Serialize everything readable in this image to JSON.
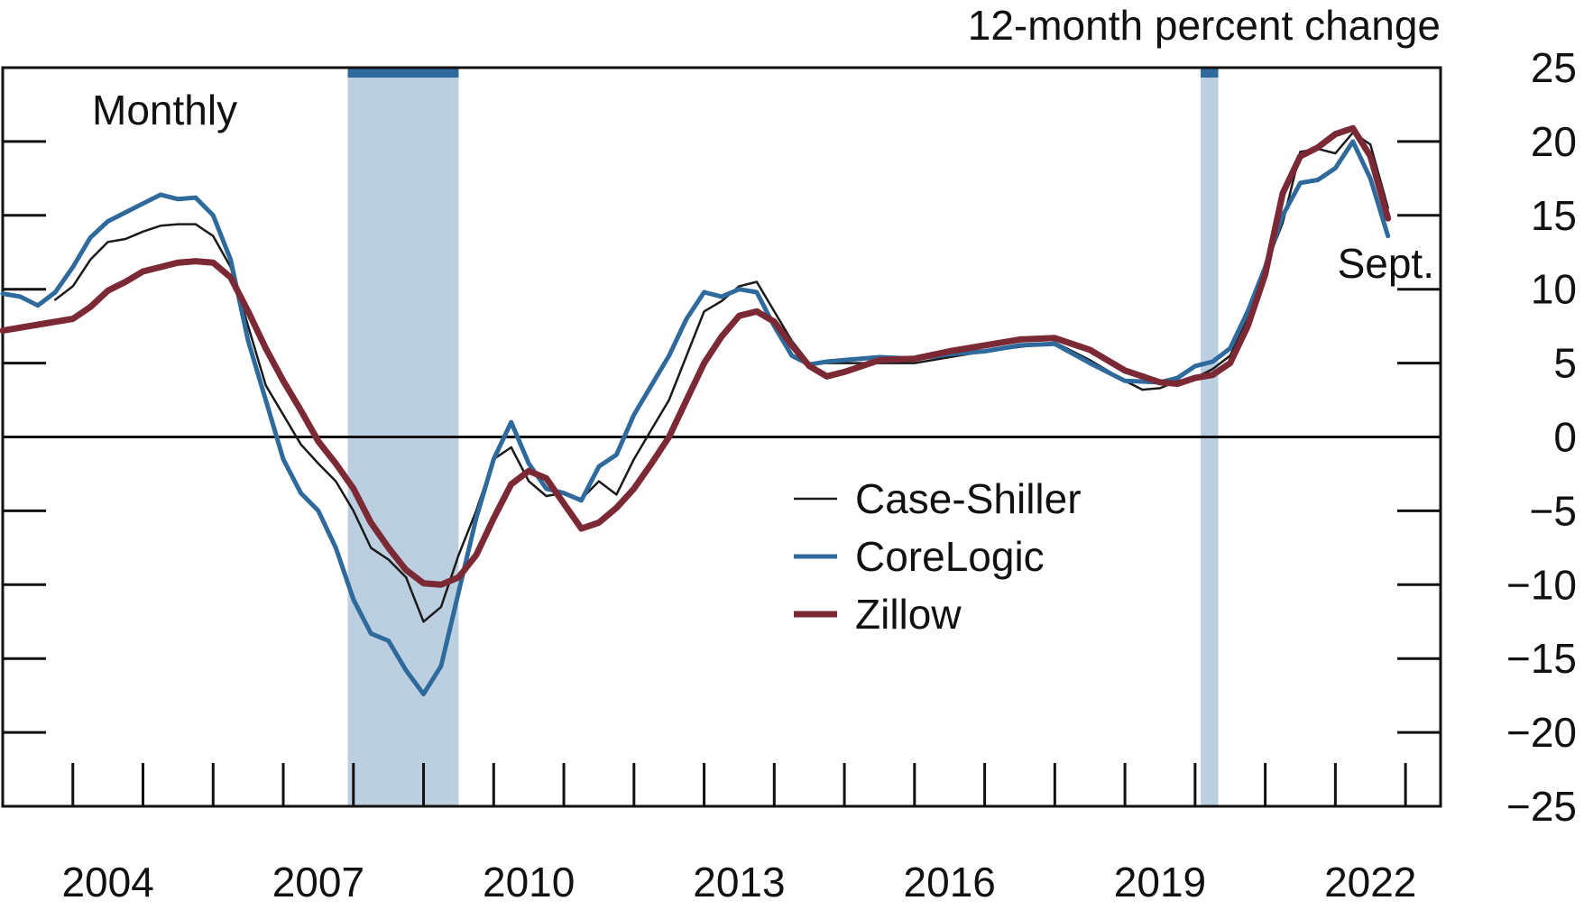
{
  "chart_data": {
    "type": "line",
    "title": "",
    "frequency_label": "Monthly",
    "ylabel": "12-month percent change",
    "xlabel": "",
    "ylim": [
      -25,
      25
    ],
    "yticks": [
      25,
      20,
      15,
      10,
      5,
      0,
      -5,
      -10,
      -15,
      -20,
      -25
    ],
    "ytick_labels": [
      "25",
      "20",
      "15",
      "10",
      "5",
      "0",
      "−5",
      "−10",
      "−15",
      "−20",
      "−25"
    ],
    "xlim": [
      2003.0,
      2023.5
    ],
    "xtick_labels": [
      {
        "x": 2004.5,
        "label": "2004"
      },
      {
        "x": 2007.5,
        "label": "2007"
      },
      {
        "x": 2010.5,
        "label": "2010"
      },
      {
        "x": 2013.5,
        "label": "2013"
      },
      {
        "x": 2016.5,
        "label": "2016"
      },
      {
        "x": 2019.5,
        "label": "2019"
      },
      {
        "x": 2022.5,
        "label": "2022"
      }
    ],
    "grid": false,
    "zero_line": true,
    "recessions": [
      {
        "start": 2007.92,
        "end": 2009.5
      },
      {
        "start": 2020.08,
        "end": 2020.33
      }
    ],
    "legend": {
      "placement": "center",
      "entries": [
        {
          "name": "Case-Shiller",
          "color": "#1a1a1a"
        },
        {
          "name": "CoreLogic",
          "color": "#2e6a9c"
        },
        {
          "name": "Zillow",
          "color": "#7b2a35"
        }
      ]
    },
    "end_annotation": "Sept.",
    "colors": {
      "recession_fill": "#bccfe0",
      "recession_bar": "#2e6a9c",
      "axis": "#111111"
    },
    "series": [
      {
        "name": "Case-Shiller",
        "color": "#1a1a1a",
        "points": [
          [
            2003.75,
            9.3
          ],
          [
            2004.0,
            10.2
          ],
          [
            2004.25,
            12.0
          ],
          [
            2004.5,
            13.2
          ],
          [
            2004.75,
            13.4
          ],
          [
            2005.0,
            13.9
          ],
          [
            2005.25,
            14.3
          ],
          [
            2005.5,
            14.4
          ],
          [
            2005.75,
            14.4
          ],
          [
            2006.0,
            13.6
          ],
          [
            2006.25,
            11.5
          ],
          [
            2006.5,
            7.5
          ],
          [
            2006.75,
            3.5
          ],
          [
            2007.0,
            1.5
          ],
          [
            2007.25,
            -0.5
          ],
          [
            2007.5,
            -1.8
          ],
          [
            2007.75,
            -3.0
          ],
          [
            2008.0,
            -5.0
          ],
          [
            2008.25,
            -7.5
          ],
          [
            2008.5,
            -8.3
          ],
          [
            2008.75,
            -9.5
          ],
          [
            2009.0,
            -12.5
          ],
          [
            2009.25,
            -11.5
          ],
          [
            2009.5,
            -8.0
          ],
          [
            2009.75,
            -5.0
          ],
          [
            2010.0,
            -1.5
          ],
          [
            2010.25,
            -0.7
          ],
          [
            2010.5,
            -3.0
          ],
          [
            2010.75,
            -4.0
          ],
          [
            2011.0,
            -3.8
          ],
          [
            2011.25,
            -4.2
          ],
          [
            2011.5,
            -3.0
          ],
          [
            2011.75,
            -3.9
          ],
          [
            2012.0,
            -1.5
          ],
          [
            2012.25,
            0.5
          ],
          [
            2012.5,
            2.5
          ],
          [
            2012.75,
            5.5
          ],
          [
            2013.0,
            8.5
          ],
          [
            2013.25,
            9.2
          ],
          [
            2013.5,
            10.2
          ],
          [
            2013.75,
            10.5
          ],
          [
            2014.0,
            8.5
          ],
          [
            2014.25,
            6.5
          ],
          [
            2014.5,
            5.0
          ],
          [
            2014.75,
            5.0
          ],
          [
            2015.0,
            5.0
          ],
          [
            2015.5,
            5.0
          ],
          [
            2016.0,
            5.0
          ],
          [
            2016.5,
            5.4
          ],
          [
            2017.0,
            5.8
          ],
          [
            2017.5,
            6.1
          ],
          [
            2018.0,
            6.4
          ],
          [
            2018.5,
            5.2
          ],
          [
            2019.0,
            3.8
          ],
          [
            2019.25,
            3.2
          ],
          [
            2019.5,
            3.3
          ],
          [
            2019.75,
            3.8
          ],
          [
            2020.0,
            4.0
          ],
          [
            2020.25,
            4.6
          ],
          [
            2020.5,
            5.5
          ],
          [
            2020.75,
            8.0
          ],
          [
            2021.0,
            11.5
          ],
          [
            2021.25,
            14.5
          ],
          [
            2021.5,
            19.3
          ],
          [
            2021.75,
            19.5
          ],
          [
            2022.0,
            19.2
          ],
          [
            2022.25,
            20.6
          ],
          [
            2022.5,
            19.8
          ],
          [
            2022.75,
            15.5
          ]
        ]
      },
      {
        "name": "CoreLogic",
        "color": "#2e6a9c",
        "points": [
          [
            2003.0,
            9.7
          ],
          [
            2003.25,
            9.5
          ],
          [
            2003.5,
            8.9
          ],
          [
            2003.75,
            9.8
          ],
          [
            2004.0,
            11.5
          ],
          [
            2004.25,
            13.5
          ],
          [
            2004.5,
            14.6
          ],
          [
            2004.75,
            15.2
          ],
          [
            2005.0,
            15.8
          ],
          [
            2005.25,
            16.4
          ],
          [
            2005.5,
            16.1
          ],
          [
            2005.75,
            16.2
          ],
          [
            2006.0,
            15.0
          ],
          [
            2006.25,
            12.0
          ],
          [
            2006.5,
            6.5
          ],
          [
            2006.75,
            2.5
          ],
          [
            2007.0,
            -1.5
          ],
          [
            2007.25,
            -3.8
          ],
          [
            2007.5,
            -5.0
          ],
          [
            2007.75,
            -7.5
          ],
          [
            2008.0,
            -11.0
          ],
          [
            2008.25,
            -13.3
          ],
          [
            2008.5,
            -13.8
          ],
          [
            2008.75,
            -15.8
          ],
          [
            2009.0,
            -17.4
          ],
          [
            2009.25,
            -15.5
          ],
          [
            2009.5,
            -10.5
          ],
          [
            2009.75,
            -5.5
          ],
          [
            2010.0,
            -1.5
          ],
          [
            2010.25,
            1.0
          ],
          [
            2010.5,
            -1.8
          ],
          [
            2010.75,
            -3.5
          ],
          [
            2011.0,
            -3.8
          ],
          [
            2011.25,
            -4.3
          ],
          [
            2011.5,
            -2.0
          ],
          [
            2011.75,
            -1.2
          ],
          [
            2012.0,
            1.5
          ],
          [
            2012.25,
            3.5
          ],
          [
            2012.5,
            5.5
          ],
          [
            2012.75,
            8.0
          ],
          [
            2013.0,
            9.8
          ],
          [
            2013.25,
            9.5
          ],
          [
            2013.5,
            10.0
          ],
          [
            2013.75,
            9.8
          ],
          [
            2014.0,
            7.5
          ],
          [
            2014.25,
            5.5
          ],
          [
            2014.5,
            4.9
          ],
          [
            2014.75,
            5.1
          ],
          [
            2015.0,
            5.2
          ],
          [
            2015.5,
            5.4
          ],
          [
            2016.0,
            5.3
          ],
          [
            2016.5,
            5.6
          ],
          [
            2017.0,
            5.8
          ],
          [
            2017.5,
            6.2
          ],
          [
            2018.0,
            6.3
          ],
          [
            2018.5,
            5.0
          ],
          [
            2019.0,
            3.8
          ],
          [
            2019.5,
            3.7
          ],
          [
            2019.75,
            4.0
          ],
          [
            2020.0,
            4.8
          ],
          [
            2020.25,
            5.1
          ],
          [
            2020.5,
            6.0
          ],
          [
            2020.75,
            8.5
          ],
          [
            2021.0,
            11.5
          ],
          [
            2021.25,
            15.0
          ],
          [
            2021.5,
            17.2
          ],
          [
            2021.75,
            17.4
          ],
          [
            2022.0,
            18.2
          ],
          [
            2022.25,
            20.0
          ],
          [
            2022.5,
            17.5
          ],
          [
            2022.75,
            13.6
          ]
        ]
      },
      {
        "name": "Zillow",
        "color": "#7b2a35",
        "points": [
          [
            2003.0,
            7.2
          ],
          [
            2003.5,
            7.6
          ],
          [
            2004.0,
            8.0
          ],
          [
            2004.25,
            8.8
          ],
          [
            2004.5,
            9.9
          ],
          [
            2004.75,
            10.5
          ],
          [
            2005.0,
            11.2
          ],
          [
            2005.5,
            11.8
          ],
          [
            2005.75,
            11.9
          ],
          [
            2006.0,
            11.8
          ],
          [
            2006.25,
            10.8
          ],
          [
            2006.5,
            8.5
          ],
          [
            2006.75,
            6.0
          ],
          [
            2007.0,
            3.8
          ],
          [
            2007.25,
            1.8
          ],
          [
            2007.5,
            -0.3
          ],
          [
            2007.75,
            -1.8
          ],
          [
            2008.0,
            -3.5
          ],
          [
            2008.25,
            -5.8
          ],
          [
            2008.5,
            -7.5
          ],
          [
            2008.75,
            -9.0
          ],
          [
            2009.0,
            -9.9
          ],
          [
            2009.25,
            -10.0
          ],
          [
            2009.5,
            -9.5
          ],
          [
            2009.75,
            -8.0
          ],
          [
            2010.0,
            -5.5
          ],
          [
            2010.25,
            -3.2
          ],
          [
            2010.5,
            -2.3
          ],
          [
            2010.75,
            -2.8
          ],
          [
            2011.0,
            -4.5
          ],
          [
            2011.25,
            -6.2
          ],
          [
            2011.5,
            -5.8
          ],
          [
            2011.75,
            -4.8
          ],
          [
            2012.0,
            -3.5
          ],
          [
            2012.25,
            -1.8
          ],
          [
            2012.5,
            0.0
          ],
          [
            2012.75,
            2.5
          ],
          [
            2013.0,
            5.0
          ],
          [
            2013.25,
            6.8
          ],
          [
            2013.5,
            8.2
          ],
          [
            2013.75,
            8.5
          ],
          [
            2014.0,
            7.8
          ],
          [
            2014.25,
            6.2
          ],
          [
            2014.5,
            4.8
          ],
          [
            2014.75,
            4.1
          ],
          [
            2015.0,
            4.4
          ],
          [
            2015.5,
            5.2
          ],
          [
            2016.0,
            5.3
          ],
          [
            2016.5,
            5.8
          ],
          [
            2017.0,
            6.2
          ],
          [
            2017.5,
            6.6
          ],
          [
            2018.0,
            6.7
          ],
          [
            2018.5,
            5.9
          ],
          [
            2019.0,
            4.5
          ],
          [
            2019.5,
            3.7
          ],
          [
            2019.75,
            3.6
          ],
          [
            2020.0,
            4.0
          ],
          [
            2020.25,
            4.2
          ],
          [
            2020.5,
            5.0
          ],
          [
            2020.75,
            7.5
          ],
          [
            2021.0,
            11.0
          ],
          [
            2021.25,
            16.5
          ],
          [
            2021.5,
            19.0
          ],
          [
            2021.75,
            19.6
          ],
          [
            2022.0,
            20.5
          ],
          [
            2022.25,
            20.9
          ],
          [
            2022.5,
            19.0
          ],
          [
            2022.75,
            14.8
          ]
        ]
      }
    ]
  }
}
